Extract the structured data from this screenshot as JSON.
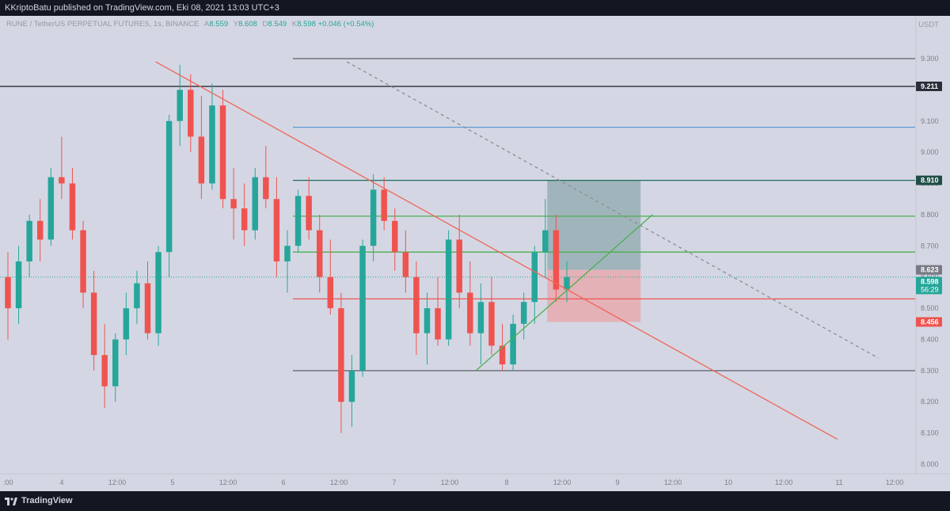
{
  "header": {
    "publisher_text": "KKriptoBatu published on TradingView.com, Eki 08, 2021 13:03 UTC+3"
  },
  "legend": {
    "symbol": "RUNE / TetherUS PERPETUAL FUTURES, 1s, BINANCE",
    "open_label": "A",
    "open": "8.559",
    "high_label": "Y",
    "high": "8.608",
    "low_label": "D",
    "low": "8.549",
    "close_label": "K",
    "close": "8.598",
    "change": "+0.046 (+0.54%)"
  },
  "currency": "USDT",
  "footer": {
    "brand": "TradingView"
  },
  "colors": {
    "up": "#26a69a",
    "down": "#ef5350",
    "trend_red": "#f0655a",
    "trend_green": "#4caf50",
    "blue_level": "#5b9bd5",
    "dark_level": "#3a3e4a",
    "target_zone": "#8fa9ad",
    "stop_zone": "#e6a8aa"
  },
  "chart_data": {
    "type": "candlestick",
    "y_axis": {
      "min": 8.0,
      "max": 9.3,
      "ticks": [
        "9.300",
        "9.100",
        "9.000",
        "8.900",
        "8.800",
        "8.700",
        "8.600",
        "8.500",
        "8.400",
        "8.300",
        "8.200",
        "8.100",
        "8.000"
      ]
    },
    "x_axis": {
      "ticks": [
        ":00",
        "4",
        "12:00",
        "5",
        "12:00",
        "6",
        "12:00",
        "7",
        "12:00",
        "8",
        "12:00",
        "9",
        "12:00",
        "10",
        "12:00",
        "11",
        "12:00"
      ]
    },
    "price_labels": [
      {
        "value": "9.211",
        "bg": "#2a2e39",
        "fg": "#ffffff"
      },
      {
        "value": "8.910",
        "bg": "#1f4d46",
        "fg": "#ffffff"
      },
      {
        "value": "8.623",
        "bg": "#787b86",
        "fg": "#ffffff"
      },
      {
        "value": "8.598",
        "bg": "#26a69a",
        "fg": "#ffffff",
        "countdown": "56:29"
      },
      {
        "value": "8.456",
        "bg": "#ef5350",
        "fg": "#ffffff"
      }
    ],
    "horizontal_levels": [
      {
        "price": 9.3,
        "color": "#5d606b",
        "from": 0.32
      },
      {
        "price": 9.211,
        "color": "#2a2e39",
        "from": 0
      },
      {
        "price": 9.08,
        "color": "#5b9bd5",
        "from": 0.32
      },
      {
        "price": 8.91,
        "color": "#1f6b5f",
        "from": 0.32
      },
      {
        "price": 8.795,
        "color": "#4caf50",
        "from": 0.32
      },
      {
        "price": 8.68,
        "color": "#4caf50",
        "from": 0.32
      },
      {
        "price": 8.6,
        "color": "#26a69a",
        "from": 0,
        "dotted": true
      },
      {
        "price": 8.53,
        "color": "#ef5350",
        "from": 0.32
      },
      {
        "price": 8.3,
        "color": "#5d606b",
        "from": 0.32
      }
    ],
    "candles": [
      {
        "o": 8.6,
        "h": 8.68,
        "l": 8.4,
        "c": 8.5
      },
      {
        "o": 8.5,
        "h": 8.7,
        "l": 8.45,
        "c": 8.65
      },
      {
        "o": 8.65,
        "h": 8.8,
        "l": 8.6,
        "c": 8.78
      },
      {
        "o": 8.78,
        "h": 8.85,
        "l": 8.65,
        "c": 8.72
      },
      {
        "o": 8.72,
        "h": 8.95,
        "l": 8.7,
        "c": 8.92
      },
      {
        "o": 8.92,
        "h": 9.05,
        "l": 8.85,
        "c": 8.9
      },
      {
        "o": 8.9,
        "h": 8.95,
        "l": 8.72,
        "c": 8.75
      },
      {
        "o": 8.75,
        "h": 8.78,
        "l": 8.5,
        "c": 8.55
      },
      {
        "o": 8.55,
        "h": 8.62,
        "l": 8.3,
        "c": 8.35
      },
      {
        "o": 8.35,
        "h": 8.45,
        "l": 8.18,
        "c": 8.25
      },
      {
        "o": 8.25,
        "h": 8.42,
        "l": 8.2,
        "c": 8.4
      },
      {
        "o": 8.4,
        "h": 8.55,
        "l": 8.35,
        "c": 8.5
      },
      {
        "o": 8.5,
        "h": 8.62,
        "l": 8.45,
        "c": 8.58
      },
      {
        "o": 8.58,
        "h": 8.65,
        "l": 8.4,
        "c": 8.42
      },
      {
        "o": 8.42,
        "h": 8.7,
        "l": 8.38,
        "c": 8.68
      },
      {
        "o": 8.68,
        "h": 9.12,
        "l": 8.6,
        "c": 9.1
      },
      {
        "o": 9.1,
        "h": 9.28,
        "l": 9.02,
        "c": 9.2
      },
      {
        "o": 9.2,
        "h": 9.25,
        "l": 9.0,
        "c": 9.05
      },
      {
        "o": 9.05,
        "h": 9.18,
        "l": 8.85,
        "c": 8.9
      },
      {
        "o": 8.9,
        "h": 9.22,
        "l": 8.88,
        "c": 9.15
      },
      {
        "o": 9.15,
        "h": 9.2,
        "l": 8.82,
        "c": 8.85
      },
      {
        "o": 8.85,
        "h": 8.95,
        "l": 8.72,
        "c": 8.82
      },
      {
        "o": 8.82,
        "h": 8.9,
        "l": 8.7,
        "c": 8.75
      },
      {
        "o": 8.75,
        "h": 8.95,
        "l": 8.72,
        "c": 8.92
      },
      {
        "o": 8.92,
        "h": 9.02,
        "l": 8.82,
        "c": 8.85
      },
      {
        "o": 8.85,
        "h": 8.92,
        "l": 8.6,
        "c": 8.65
      },
      {
        "o": 8.65,
        "h": 8.75,
        "l": 8.55,
        "c": 8.7
      },
      {
        "o": 8.7,
        "h": 8.88,
        "l": 8.68,
        "c": 8.86
      },
      {
        "o": 8.86,
        "h": 8.92,
        "l": 8.72,
        "c": 8.75
      },
      {
        "o": 8.75,
        "h": 8.8,
        "l": 8.55,
        "c": 8.6
      },
      {
        "o": 8.6,
        "h": 8.72,
        "l": 8.48,
        "c": 8.5
      },
      {
        "o": 8.5,
        "h": 8.55,
        "l": 8.1,
        "c": 8.2
      },
      {
        "o": 8.2,
        "h": 8.35,
        "l": 8.12,
        "c": 8.3
      },
      {
        "o": 8.3,
        "h": 8.72,
        "l": 8.28,
        "c": 8.7
      },
      {
        "o": 8.7,
        "h": 8.93,
        "l": 8.65,
        "c": 8.88
      },
      {
        "o": 8.88,
        "h": 8.92,
        "l": 8.75,
        "c": 8.78
      },
      {
        "o": 8.78,
        "h": 8.82,
        "l": 8.62,
        "c": 8.68
      },
      {
        "o": 8.68,
        "h": 8.75,
        "l": 8.55,
        "c": 8.6
      },
      {
        "o": 8.6,
        "h": 8.65,
        "l": 8.35,
        "c": 8.42
      },
      {
        "o": 8.42,
        "h": 8.55,
        "l": 8.32,
        "c": 8.5
      },
      {
        "o": 8.5,
        "h": 8.6,
        "l": 8.38,
        "c": 8.4
      },
      {
        "o": 8.4,
        "h": 8.75,
        "l": 8.38,
        "c": 8.72
      },
      {
        "o": 8.72,
        "h": 8.8,
        "l": 8.5,
        "c": 8.55
      },
      {
        "o": 8.55,
        "h": 8.65,
        "l": 8.38,
        "c": 8.42
      },
      {
        "o": 8.42,
        "h": 8.58,
        "l": 8.32,
        "c": 8.52
      },
      {
        "o": 8.52,
        "h": 8.6,
        "l": 8.35,
        "c": 8.38
      },
      {
        "o": 8.38,
        "h": 8.45,
        "l": 8.3,
        "c": 8.32
      },
      {
        "o": 8.32,
        "h": 8.48,
        "l": 8.3,
        "c": 8.45
      },
      {
        "o": 8.45,
        "h": 8.55,
        "l": 8.4,
        "c": 8.52
      },
      {
        "o": 8.52,
        "h": 8.7,
        "l": 8.45,
        "c": 8.68
      },
      {
        "o": 8.68,
        "h": 8.85,
        "l": 8.6,
        "c": 8.75
      },
      {
        "o": 8.75,
        "h": 8.8,
        "l": 8.52,
        "c": 8.56
      },
      {
        "o": 8.56,
        "h": 8.65,
        "l": 8.52,
        "c": 8.6
      }
    ],
    "trendlines": [
      {
        "name": "main-downtrend",
        "color": "#f0655a",
        "x0": 0.17,
        "p0": 9.29,
        "x1": 0.915,
        "p1": 8.08
      },
      {
        "name": "uptrend-support",
        "color": "#4caf50",
        "x0": 0.52,
        "p0": 8.3,
        "x1": 0.713,
        "p1": 8.8
      },
      {
        "name": "dashed-downtrend",
        "color": "#8a8d96",
        "x0": 0.379,
        "p0": 9.29,
        "x1": 0.96,
        "p1": 8.34,
        "dashed": true
      }
    ],
    "position_tool": {
      "x_start": 0.598,
      "x_end": 0.7,
      "target": 8.91,
      "entry": 8.623,
      "stop": 8.456
    }
  }
}
